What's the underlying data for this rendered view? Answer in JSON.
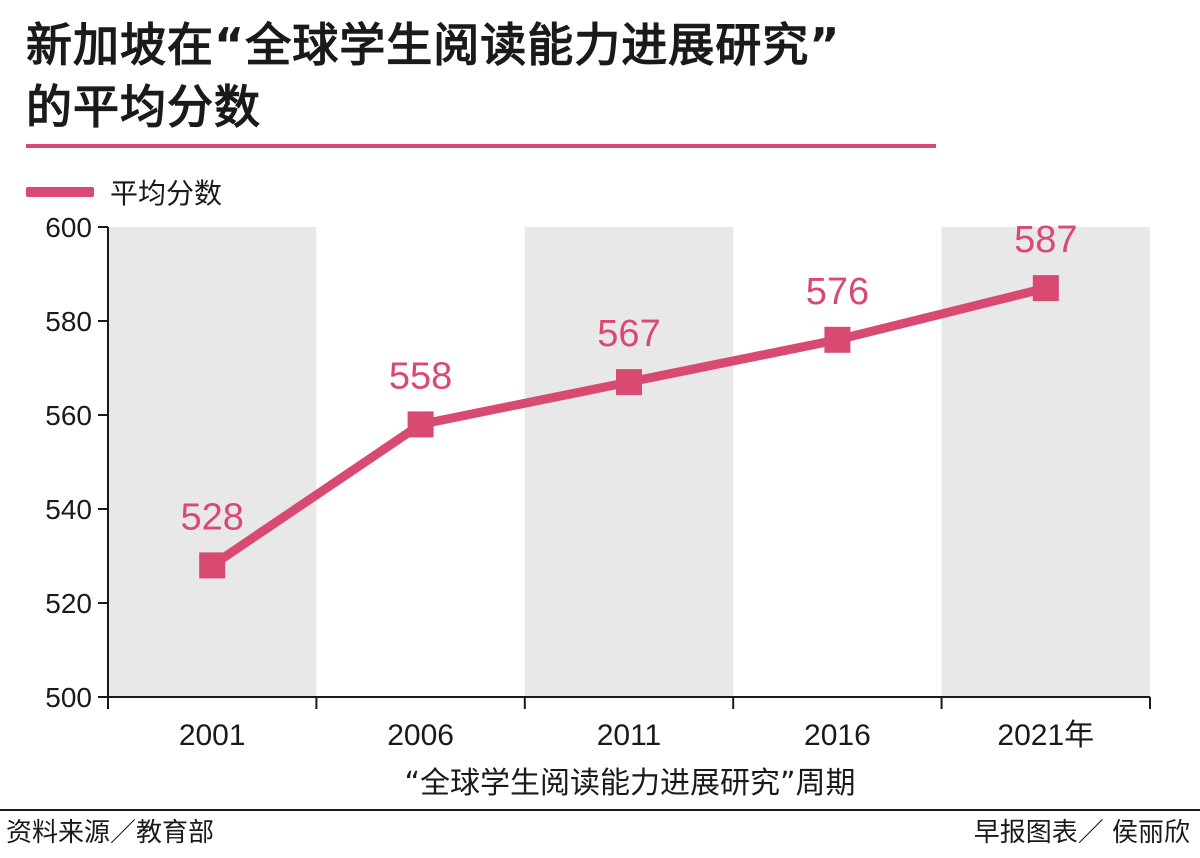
{
  "header": {
    "title_line1": "新加坡在“全球学生阅读能力进展研究”",
    "title_line2": "的平均分数"
  },
  "legend": {
    "label": "平均分数"
  },
  "colors": {
    "accent": "#d94a73",
    "band": "#e8e8e8",
    "axis": "#1a1a1a"
  },
  "chart_data": {
    "type": "line",
    "title": "新加坡在“全球学生阅读能力进展研究”的平均分数",
    "categories": [
      "2001",
      "2006",
      "2011",
      "2016",
      "2021年"
    ],
    "series": [
      {
        "name": "平均分数",
        "values": [
          528,
          558,
          567,
          576,
          587
        ]
      }
    ],
    "data_labels": [
      "528",
      "558",
      "567",
      "576",
      "587"
    ],
    "xlabel": "“全球学生阅读能力进展研究”周期",
    "ylabel": "",
    "ylim": [
      500,
      600
    ],
    "yticks": [
      500,
      520,
      540,
      560,
      580,
      600
    ],
    "ytick_labels": [
      "500",
      "520",
      "540",
      "560",
      "580",
      "600"
    ],
    "legend_position": "top-left",
    "marker": "square"
  },
  "footer": {
    "source": "资料来源／教育部",
    "credit": "早报图表／ 侯丽欣"
  }
}
